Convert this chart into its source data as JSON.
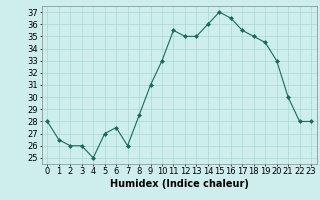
{
  "x": [
    0,
    1,
    2,
    3,
    4,
    5,
    6,
    7,
    8,
    9,
    10,
    11,
    12,
    13,
    14,
    15,
    16,
    17,
    18,
    19,
    20,
    21,
    22,
    23
  ],
  "y": [
    28,
    26.5,
    26,
    26,
    25,
    27,
    27.5,
    26,
    28.5,
    31,
    33,
    35.5,
    35,
    35,
    36,
    37,
    36.5,
    35.5,
    35,
    34.5,
    33,
    30,
    28,
    28
  ],
  "line_color": "#1a6b5a",
  "marker": "D",
  "marker_size": 2,
  "bg_color": "#cdeeed",
  "grid_color": "#aad8d5",
  "xlabel": "Humidex (Indice chaleur)",
  "ylabel_ticks": [
    25,
    26,
    27,
    28,
    29,
    30,
    31,
    32,
    33,
    34,
    35,
    36,
    37
  ],
  "ylim": [
    24.5,
    37.5
  ],
  "xlim": [
    -0.5,
    23.5
  ],
  "xlabel_fontsize": 7,
  "tick_fontsize": 6
}
